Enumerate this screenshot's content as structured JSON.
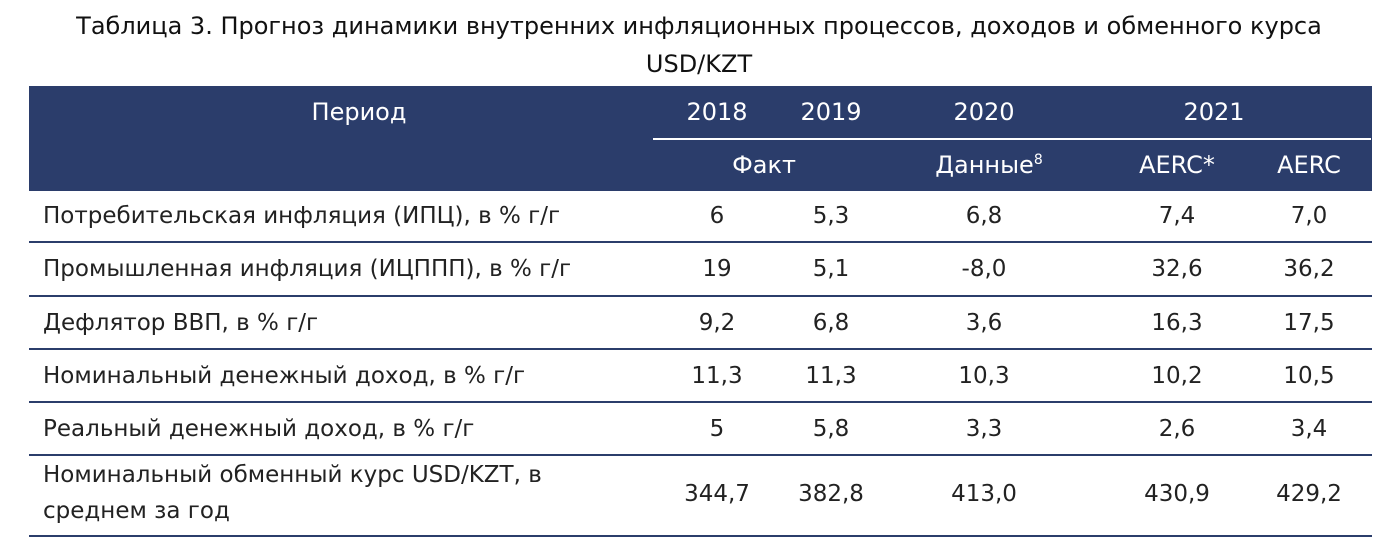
{
  "title": {
    "line1": "Таблица 3. Прогноз динамики внутренних инфляционных процессов, доходов и обменного курса",
    "line2": "USD/KZT"
  },
  "header": {
    "period": "Период",
    "years": [
      "2018",
      "2019",
      "2020",
      "2021"
    ],
    "fact": "Факт",
    "data": "Данные",
    "data_sup": "8",
    "aerc_star": "AERC*",
    "aerc": "AERC"
  },
  "rows": [
    {
      "label": "Потребительская инфляция (ИПЦ), в % г/г",
      "values": [
        "6",
        "5,3",
        "6,8",
        "7,4",
        "7,0"
      ]
    },
    {
      "label": "Промышленная инфляция (ИЦППП), в % г/г",
      "values": [
        "19",
        "5,1",
        "-8,0",
        "32,6",
        "36,2"
      ]
    },
    {
      "label": "Дефлятор ВВП, в % г/г",
      "values": [
        "9,2",
        "6,8",
        "3,6",
        "16,3",
        "17,5"
      ]
    },
    {
      "label": "Номинальный денежный доход, в % г/г",
      "values": [
        "11,3",
        "11,3",
        "10,3",
        "10,2",
        "10,5"
      ]
    },
    {
      "label": "Реальный денежный доход, в % г/г",
      "values": [
        "5",
        "5,8",
        "3,3",
        "2,6",
        "3,4"
      ]
    },
    {
      "label_line1": "Номинальный обменный курс USD/KZT, в",
      "label_line2": "среднем за год",
      "values": [
        "344,7",
        "382,8",
        "413,0",
        "430,9",
        "429,2"
      ]
    }
  ]
}
